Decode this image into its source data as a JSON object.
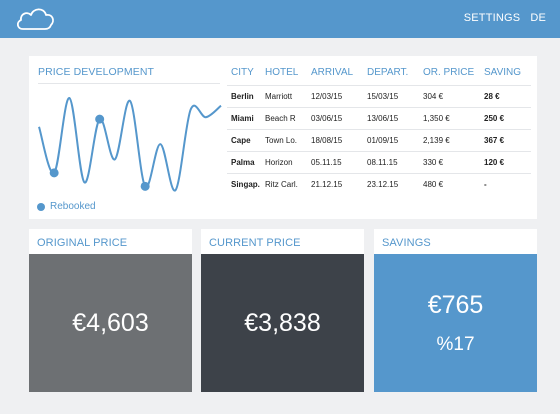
{
  "header": {
    "logo_icon": "cloud-icon",
    "links": [
      "SETTINGS",
      "DE"
    ]
  },
  "chart_data": {
    "type": "line",
    "title": "PRICE DEVELOPMENT",
    "xlabel": "",
    "ylabel": "",
    "series": [
      {
        "values": [
          70,
          22,
          100,
          12,
          78,
          36,
          97,
          8,
          52,
          4,
          88,
          80,
          92
        ]
      }
    ],
    "markers": [
      1,
      4,
      7
    ],
    "legend": "Rebooked",
    "grid": false,
    "color": "#5597cc"
  },
  "table": {
    "headers": [
      "CITY",
      "HOTEL",
      "ARRIVAL",
      "DEPART.",
      "OR. PRICE",
      "SAVING"
    ],
    "rows": [
      [
        "Berlin",
        "Marriott",
        "12/03/15",
        "15/03/15",
        "304 €",
        "28 €"
      ],
      [
        "Miami",
        "Beach R",
        "03/06/15",
        "13/06/15",
        "1,350 €",
        "250 €"
      ],
      [
        "Cape",
        "Town Lo.",
        "18/08/15",
        "01/09/15",
        "2,139 €",
        "367 €"
      ],
      [
        "Palma",
        "Horizon",
        "05.11.15",
        "08.11.15",
        "330 €",
        "120 €"
      ],
      [
        "Singap.",
        "Ritz Carl.",
        "21.12.15",
        "23.12.15",
        "480 €",
        "-"
      ]
    ]
  },
  "panels": {
    "original": {
      "title": "ORIGINAL PRICE",
      "value": "€4,603",
      "color": "#6d7073"
    },
    "current": {
      "title": "CURRENT PRICE",
      "value": "€3,838",
      "color": "#3d4249"
    },
    "savings": {
      "title": "SAVINGS",
      "value": "€765",
      "sub": "%17",
      "color": "#5597cc"
    }
  }
}
